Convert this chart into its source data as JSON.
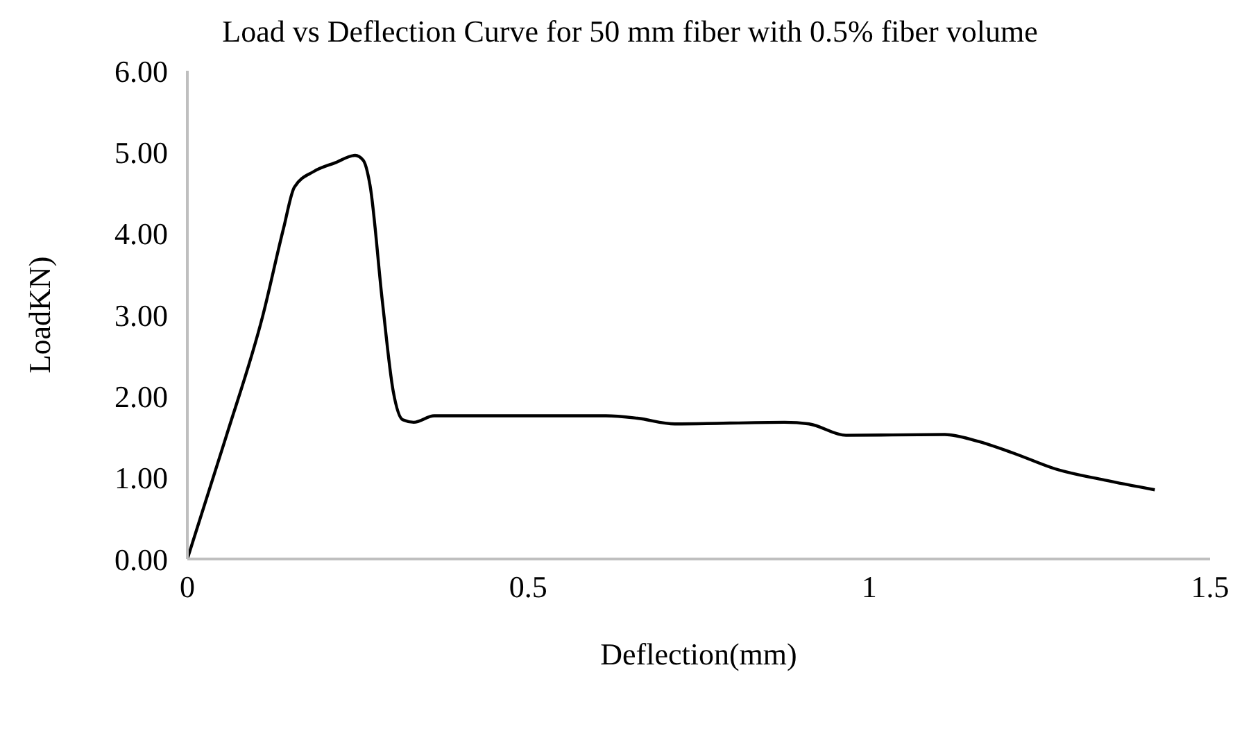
{
  "chart_data": {
    "type": "line",
    "title": "Load vs Deflection Curve for 50 mm fiber with 0.5% fiber volume",
    "xlabel": "Deflection(mm)",
    "ylabel": "LoadKN)",
    "x": [
      0,
      0.056,
      0.111,
      0.141,
      0.157,
      0.185,
      0.217,
      0.246,
      0.258,
      0.268,
      0.286,
      0.302,
      0.316,
      0.332,
      0.362,
      0.473,
      0.614,
      0.66,
      0.715,
      0.876,
      0.912,
      0.966,
      1.111,
      1.158,
      1.212,
      1.272,
      1.345,
      1.419
    ],
    "series": [
      {
        "color": "#000000",
        "values": [
          0,
          1.48,
          3.0,
          4.06,
          4.57,
          4.76,
          4.87,
          4.96,
          4.9,
          4.59,
          3.17,
          2.06,
          1.71,
          1.68,
          1.76,
          1.76,
          1.76,
          1.73,
          1.66,
          1.68,
          1.66,
          1.52,
          1.53,
          1.45,
          1.3,
          1.11,
          0.97,
          0.85
        ]
      }
    ],
    "xlim": [
      0,
      1.5
    ],
    "xticks": [
      0,
      0.5,
      1,
      1.5
    ],
    "ylim": [
      0,
      6
    ],
    "yticks": [
      {
        "value": 0,
        "label": "0.00"
      },
      {
        "value": 1,
        "label": "1.00"
      },
      {
        "value": 2,
        "label": "2.00"
      },
      {
        "value": 3,
        "label": "3.00"
      },
      {
        "value": 4,
        "label": "4.00"
      },
      {
        "value": 5,
        "label": "5.00"
      },
      {
        "value": 6,
        "label": "6.00"
      }
    ],
    "grid": false,
    "legend": false,
    "marker": "none",
    "line_style": "solid"
  }
}
